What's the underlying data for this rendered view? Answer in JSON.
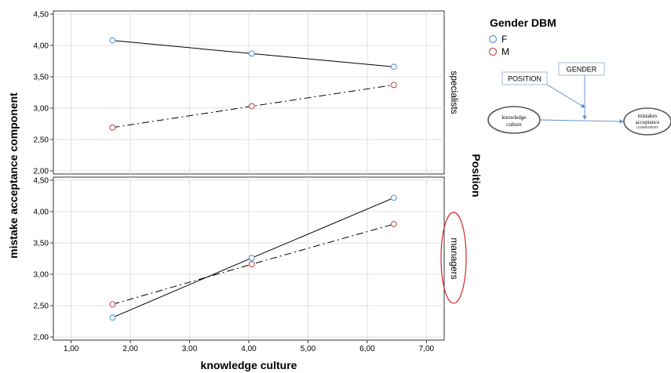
{
  "chart_data": {
    "type": "line",
    "xlabel": "knowledge culture",
    "ylabel": "mistake acceptance component",
    "facet_label": "Position",
    "xlim": [
      0.7,
      7.3
    ],
    "ylim": [
      1.95,
      4.55
    ],
    "x_ticks": [
      "1,00",
      "2,00",
      "3,00",
      "4,00",
      "5,00",
      "6,00",
      "7,00"
    ],
    "y_ticks": [
      "2,00",
      "2,50",
      "3,00",
      "3,50",
      "4,00",
      "4,50"
    ],
    "legend": {
      "title": "Gender DBM",
      "items": [
        {
          "label": "F",
          "color": "#5b9bd5",
          "dash": "solid"
        },
        {
          "label": "M",
          "color": "#c0504d",
          "dash": "dashdot"
        }
      ]
    },
    "panels": [
      {
        "label": "specialists",
        "circled": false,
        "series": [
          {
            "name": "F",
            "x": [
              1.7,
              4.05,
              6.45
            ],
            "y": [
              4.08,
              3.87,
              3.66
            ]
          },
          {
            "name": "M",
            "x": [
              1.7,
              4.05,
              6.45
            ],
            "y": [
              2.69,
              3.03,
              3.37
            ]
          }
        ]
      },
      {
        "label": "managers",
        "circled": true,
        "series": [
          {
            "name": "F",
            "x": [
              1.7,
              4.05,
              6.45
            ],
            "y": [
              2.31,
              3.26,
              4.22
            ]
          },
          {
            "name": "M",
            "x": [
              1.7,
              4.05,
              6.45
            ],
            "y": [
              2.52,
              3.16,
              3.8
            ]
          }
        ]
      }
    ]
  },
  "model_diagram": {
    "position_label": "POSITION",
    "gender_label": "GENDER",
    "knowledge_culture_label": [
      "knowledge",
      "culture"
    ],
    "mistakes_label": [
      "mistakes",
      "acceptance",
      "COMPONENT"
    ]
  }
}
